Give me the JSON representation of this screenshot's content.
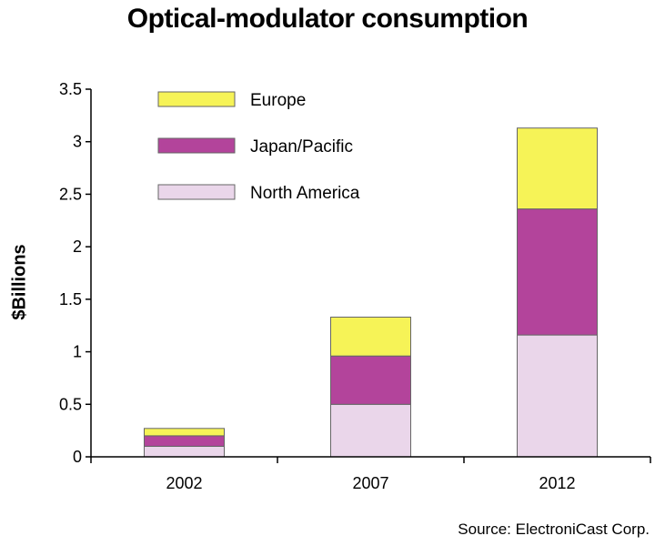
{
  "chart_data": {
    "type": "bar",
    "stacked": true,
    "title": "Optical-modulator consumption",
    "ylabel": "$Billions",
    "xlabel": "",
    "ylim": [
      0,
      3.5
    ],
    "yticks": [
      "0",
      "0.5",
      "1",
      "1.5",
      "2",
      "2.5",
      "3",
      "3.5"
    ],
    "categories": [
      "2002",
      "2007",
      "2012"
    ],
    "series": [
      {
        "name": "North America",
        "color": "#ead6ea",
        "values": [
          0.1,
          0.5,
          1.16
        ]
      },
      {
        "name": "Japan/Pacific",
        "color": "#b3449b",
        "values": [
          0.1,
          0.46,
          1.2
        ]
      },
      {
        "name": "Europe",
        "color": "#f6f357",
        "values": [
          0.07,
          0.37,
          0.77
        ]
      }
    ],
    "legend": [
      "Europe",
      "Japan/Pacific",
      "North America"
    ],
    "legend_position": "top-left",
    "grid": false,
    "source": "Source: ElectroniCast Corp."
  }
}
